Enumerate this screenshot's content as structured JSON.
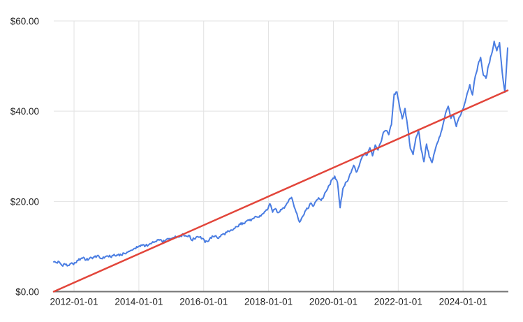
{
  "chart_data": {
    "type": "line",
    "title": "",
    "xlabel": "",
    "ylabel": "",
    "grid": true,
    "legend": "none",
    "ylim": [
      0,
      60
    ],
    "y_tick_values": [
      0,
      20,
      40,
      60
    ],
    "y_tick_labels": [
      "$0.00",
      "$20.00",
      "$40.00",
      "$60.00"
    ],
    "x_tick_labels": [
      "2012-01-01",
      "2014-01-01",
      "2016-01-01",
      "2018-01-01",
      "2020-01-01",
      "2022-01-01",
      "2024-01-01"
    ],
    "x_range": [
      "2011-05",
      "2025-05"
    ],
    "colors": {
      "price_line": "#4a7de2",
      "trend_line": "#e2453a",
      "gridline": "#e2e2e2",
      "axis": "#757575",
      "tick_text": "#222222",
      "background": "#ffffff"
    },
    "series": [
      {
        "name": "price",
        "color": "#4a7de2",
        "cadence": "monthly",
        "start": "2011-05",
        "values": [
          6.6,
          6.4,
          6.6,
          5.8,
          6.2,
          5.7,
          6.1,
          6.2,
          6.4,
          6.9,
          7.3,
          7.6,
          7.0,
          7.2,
          7.5,
          7.7,
          7.9,
          7.5,
          7.3,
          7.7,
          7.9,
          7.7,
          8.0,
          7.9,
          8.3,
          8.1,
          8.5,
          8.7,
          8.9,
          9.2,
          9.6,
          9.8,
          10.0,
          10.4,
          10.2,
          10.3,
          10.6,
          10.9,
          11.1,
          11.4,
          11.2,
          11.0,
          11.7,
          11.8,
          11.9,
          12.3,
          12.1,
          12.4,
          12.6,
          12.3,
          12.5,
          11.4,
          11.7,
          12.2,
          12.1,
          11.8,
          10.9,
          11.1,
          12.0,
          12.2,
          12.4,
          11.8,
          12.6,
          12.8,
          13.1,
          13.3,
          13.6,
          14.0,
          14.4,
          14.9,
          15.2,
          15.5,
          15.9,
          15.7,
          16.2,
          16.6,
          16.5,
          17.1,
          17.7,
          18.1,
          19.5,
          17.6,
          18.4,
          17.5,
          18.2,
          18.6,
          19.2,
          20.3,
          20.9,
          18.8,
          17.3,
          15.4,
          16.6,
          17.8,
          18.4,
          19.6,
          18.9,
          20.0,
          20.8,
          20.2,
          21.2,
          22.4,
          23.6,
          24.8,
          25.6,
          24.2,
          18.6,
          22.8,
          24.2,
          24.8,
          26.3,
          28.0,
          26.5,
          27.8,
          29.6,
          30.6,
          30.3,
          31.9,
          30.1,
          32.5,
          31.4,
          33.0,
          35.3,
          35.7,
          34.8,
          37.0,
          43.8,
          44.3,
          41.0,
          38.3,
          40.6,
          36.5,
          31.7,
          30.4,
          34.0,
          35.8,
          31.5,
          28.8,
          32.7,
          29.8,
          28.6,
          31.0,
          33.0,
          34.5,
          36.8,
          39.5,
          41.1,
          38.4,
          39.0,
          36.6,
          38.6,
          39.8,
          41.5,
          43.9,
          45.9,
          43.6,
          47.7,
          50.1,
          51.9,
          48.0,
          47.3,
          50.3,
          52.5,
          55.5,
          53.4,
          55.2,
          48.5,
          44.2,
          54.0
        ]
      },
      {
        "name": "trend",
        "color": "#e2453a",
        "cadence": "endpoints",
        "points": [
          [
            "2011-05",
            0.0
          ],
          [
            "2025-05",
            44.6
          ]
        ]
      }
    ],
    "texture": {
      "subdivisions": 3,
      "amplitude": 0.3
    }
  }
}
